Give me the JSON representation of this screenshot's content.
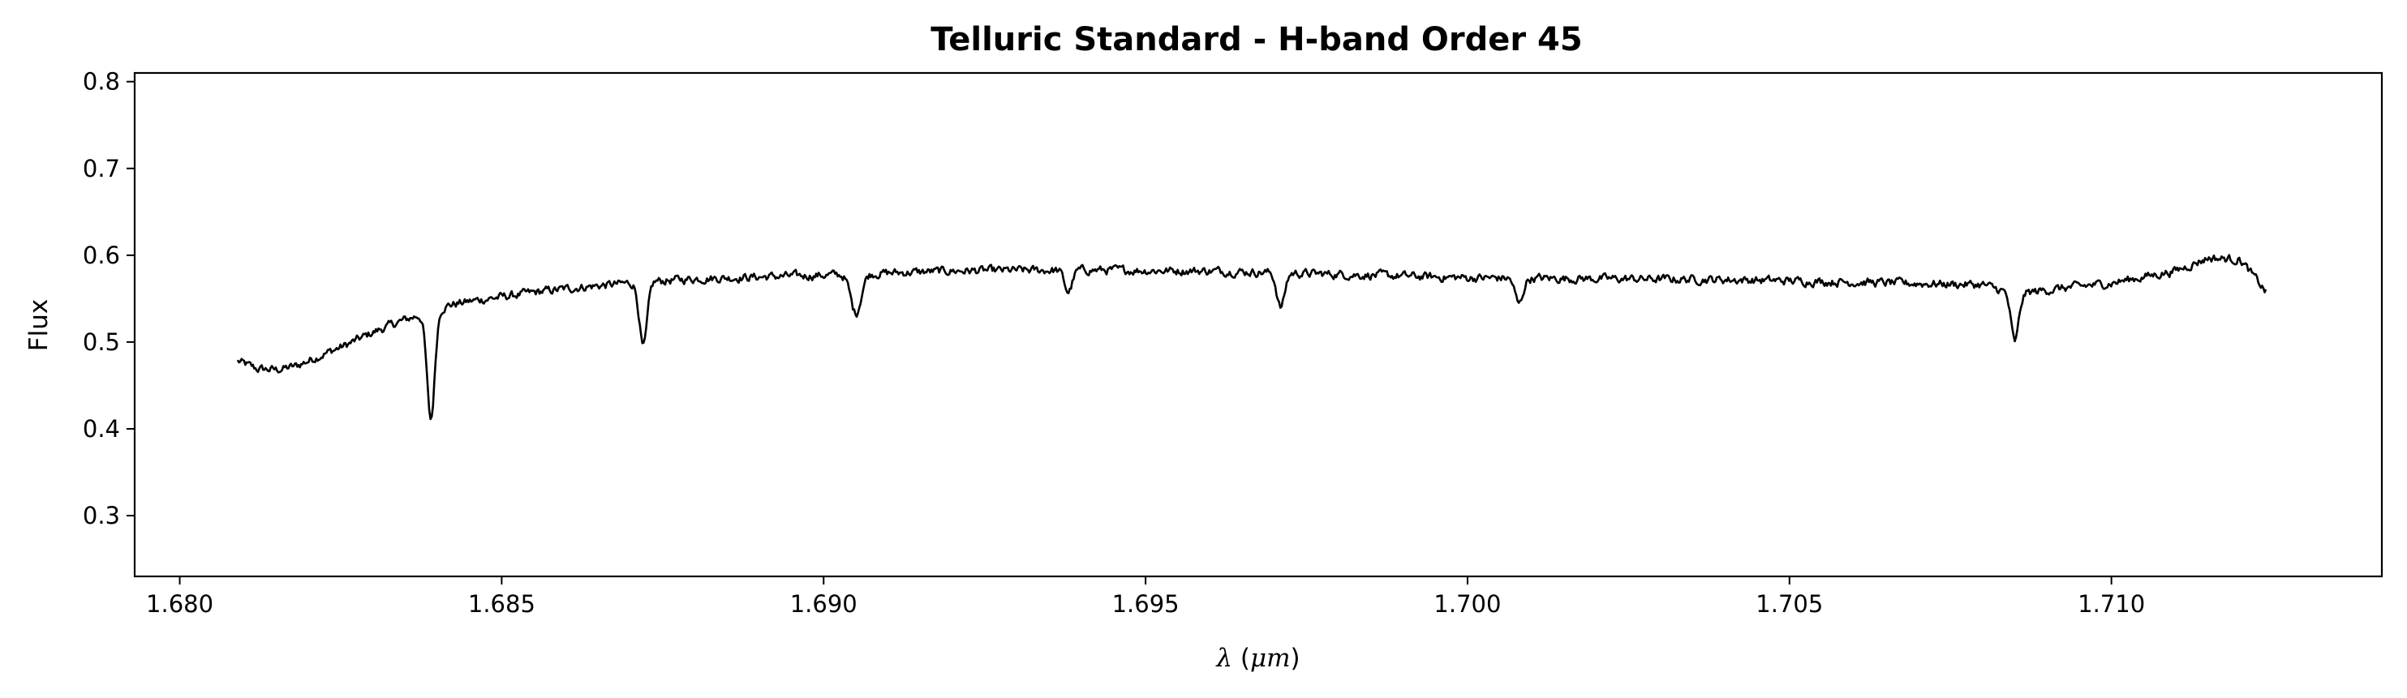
{
  "chart_data": {
    "type": "line",
    "title": "Telluric Standard - H-band Order 45",
    "xlabel": "λ (μm)",
    "xlabel_parts": {
      "symbol": "λ",
      "open": " (",
      "unit": "μm",
      "close": ")"
    },
    "ylabel": "Flux",
    "xlim": [
      1.6793,
      1.7142
    ],
    "ylim": [
      0.23,
      0.81
    ],
    "xticks": [
      1.68,
      1.685,
      1.69,
      1.695,
      1.7,
      1.705,
      1.71
    ],
    "xtick_labels": [
      "1.680",
      "1.685",
      "1.690",
      "1.695",
      "1.700",
      "1.705",
      "1.710"
    ],
    "yticks": [
      0.3,
      0.4,
      0.5,
      0.6,
      0.7,
      0.8
    ],
    "ytick_labels": [
      "0.3",
      "0.4",
      "0.5",
      "0.6",
      "0.7",
      "0.8"
    ],
    "grid": false,
    "legend": "none",
    "line_color": "#000000",
    "series": [
      {
        "x_range": [
          1.6809,
          1.7124
        ],
        "continuum": [
          [
            1.6809,
            0.478
          ],
          [
            1.6812,
            0.469
          ],
          [
            1.6815,
            0.468
          ],
          [
            1.6818,
            0.472
          ],
          [
            1.6822,
            0.485
          ],
          [
            1.6826,
            0.497
          ],
          [
            1.683,
            0.511
          ],
          [
            1.6834,
            0.523
          ],
          [
            1.6838,
            0.533
          ],
          [
            1.6842,
            0.543
          ],
          [
            1.6846,
            0.548
          ],
          [
            1.685,
            0.552
          ],
          [
            1.6856,
            0.558
          ],
          [
            1.6862,
            0.563
          ],
          [
            1.687,
            0.568
          ],
          [
            1.688,
            0.573
          ],
          [
            1.69,
            0.577
          ],
          [
            1.692,
            0.582
          ],
          [
            1.694,
            0.583
          ],
          [
            1.696,
            0.582
          ],
          [
            1.698,
            0.578
          ],
          [
            1.7,
            0.574
          ],
          [
            1.702,
            0.573
          ],
          [
            1.704,
            0.572
          ],
          [
            1.706,
            0.569
          ],
          [
            1.708,
            0.566
          ],
          [
            1.7085,
            0.555
          ],
          [
            1.709,
            0.56
          ],
          [
            1.71,
            0.568
          ],
          [
            1.711,
            0.582
          ],
          [
            1.7115,
            0.597
          ],
          [
            1.712,
            0.595
          ],
          [
            1.7124,
            0.558
          ]
        ],
        "absorption_lines": [
          {
            "x": 1.6839,
            "depth": 0.125,
            "width": 6e-05
          },
          {
            "x": 1.6872,
            "depth": 0.075,
            "width": 6e-05
          },
          {
            "x": 1.6905,
            "depth": 0.045,
            "width": 8e-05
          },
          {
            "x": 1.6938,
            "depth": 0.025,
            "width": 6e-05
          },
          {
            "x": 1.6971,
            "depth": 0.04,
            "width": 6e-05
          },
          {
            "x": 1.7008,
            "depth": 0.03,
            "width": 6e-05
          },
          {
            "x": 1.7085,
            "depth": 0.055,
            "width": 6e-05
          }
        ],
        "noise_amplitude": 0.004,
        "n_points": 1600
      }
    ]
  }
}
